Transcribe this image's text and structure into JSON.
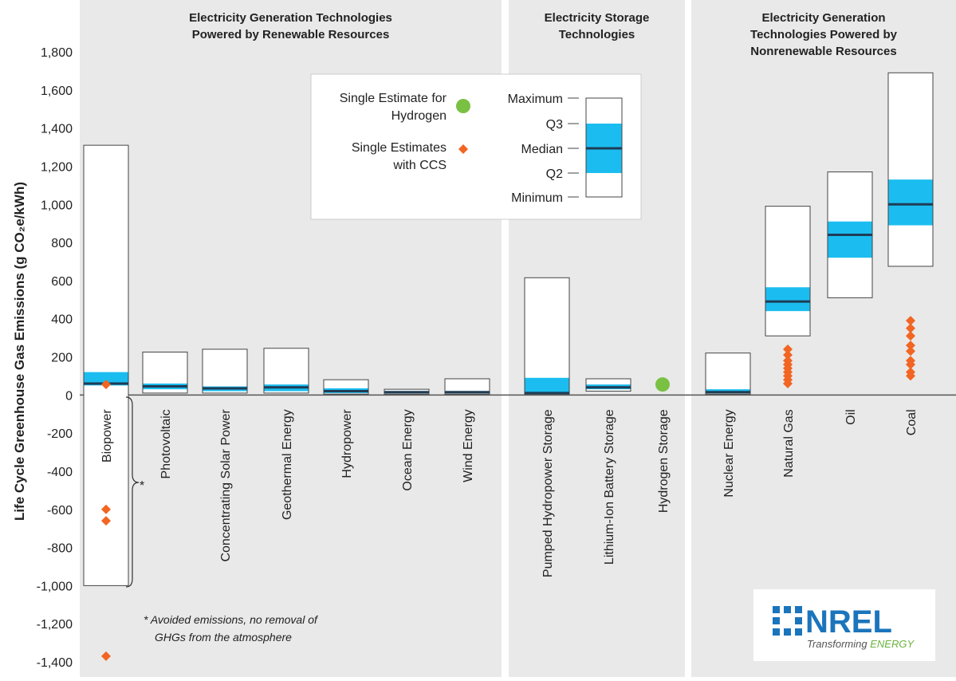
{
  "chart_data": {
    "type": "boxplot",
    "ylabel": "Life Cycle Greenhouse Gas Emissions (g CO₂e/kWh)",
    "ylim": [
      -1400,
      1800
    ],
    "yticks": [
      -1400,
      -1200,
      -1000,
      -800,
      -600,
      -400,
      -200,
      0,
      200,
      400,
      600,
      800,
      1000,
      1200,
      1400,
      1600,
      1800
    ],
    "ytick_labels": [
      "-1,400",
      "-1,200",
      "-1,000",
      "-800",
      "-600",
      "-400",
      "-200",
      "0",
      "200",
      "400",
      "600",
      "800",
      "1,000",
      "1,200",
      "1,400",
      "1,600",
      "1,800"
    ],
    "panels": [
      {
        "title_lines": [
          "Electricity Generation Technologies",
          "Powered by Renewable Resources"
        ],
        "start": 0,
        "end": 6
      },
      {
        "title_lines": [
          "Electricity Storage",
          "Technologies"
        ],
        "start": 7,
        "end": 9
      },
      {
        "title_lines": [
          "Electricity Generation",
          "Technologies Powered by",
          "Nonrenewable Resources"
        ],
        "start": 10,
        "end": 13
      }
    ],
    "categories": [
      {
        "name": "Biopower",
        "min": -1000,
        "q1": 50,
        "median": 60,
        "q3": 120,
        "max": 1310,
        "ccs": [
          55,
          -600,
          -660,
          -1370
        ]
      },
      {
        "name": "Photovoltaic",
        "min": 10,
        "q1": 30,
        "median": 45,
        "q3": 60,
        "max": 225
      },
      {
        "name": "Concentrating Solar Power",
        "min": 10,
        "q1": 20,
        "median": 35,
        "q3": 45,
        "max": 240
      },
      {
        "name": "Geothermal Energy",
        "min": 10,
        "q1": 20,
        "median": 40,
        "q3": 55,
        "max": 245
      },
      {
        "name": "Hydropower",
        "min": 5,
        "q1": 10,
        "median": 20,
        "q3": 35,
        "max": 80
      },
      {
        "name": "Ocean Energy",
        "min": 5,
        "q1": 10,
        "median": 15,
        "q3": 20,
        "max": 30
      },
      {
        "name": "Wind Energy",
        "min": 5,
        "q1": 10,
        "median": 15,
        "q3": 20,
        "max": 85
      },
      {
        "name": "Pumped Hydropower Storage",
        "min": 5,
        "q1": 10,
        "median": 10,
        "q3": 90,
        "max": 615
      },
      {
        "name": "Lithium-Ion Battery Storage",
        "min": 20,
        "q1": 30,
        "median": 40,
        "q3": 55,
        "max": 85
      },
      {
        "name": "Hydrogen Storage",
        "hydrogen": [
          55
        ]
      },
      {
        "name": "Nuclear Energy",
        "min": 5,
        "q1": 10,
        "median": 15,
        "q3": 30,
        "max": 220
      },
      {
        "name": "Natural Gas",
        "min": 310,
        "q1": 440,
        "median": 490,
        "q3": 565,
        "max": 990,
        "ccs": [
          60,
          80,
          100,
          120,
          140,
          160,
          180,
          210,
          240
        ]
      },
      {
        "name": "Oil",
        "min": 510,
        "q1": 720,
        "median": 840,
        "q3": 910,
        "max": 1170
      },
      {
        "name": "Coal",
        "min": 675,
        "q1": 890,
        "median": 1000,
        "q3": 1130,
        "max": 1690,
        "ccs": [
          100,
          120,
          160,
          180,
          230,
          260,
          310,
          350,
          390
        ]
      }
    ],
    "legend": {
      "hydrogen_label_lines": [
        "Single Estimate for",
        "Hydrogen"
      ],
      "ccs_label_lines": [
        "Single Estimates",
        "with CCS"
      ],
      "box_labels": [
        "Maximum",
        "Q3",
        "Median",
        "Q2",
        "Minimum"
      ]
    },
    "bracket_mark": "*",
    "footnote_lines": [
      "* Avoided emissions, no removal of",
      "GHGs from the atmosphere"
    ],
    "colors": {
      "panel_bg": "#e9e9e9",
      "box_fill": "#ffffff",
      "iqr_fill": "#1bbdf0",
      "median_line": "#1e3c55",
      "ccs_marker": "#f26522",
      "hydrogen_marker": "#7ac143",
      "logo_blue": "#1b75bc",
      "logo_green": "#6cb33f"
    }
  },
  "logo": {
    "name": "NREL",
    "tagline_part1": "Transforming ",
    "tagline_part2": "ENERGY"
  }
}
